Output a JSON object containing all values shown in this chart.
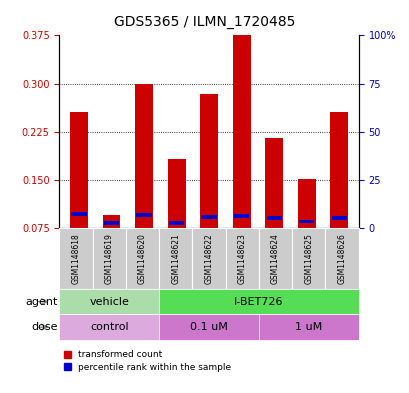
{
  "title": "GDS5365 / ILMN_1720485",
  "samples": [
    "GSM1148618",
    "GSM1148619",
    "GSM1148620",
    "GSM1148621",
    "GSM1148622",
    "GSM1148623",
    "GSM1148624",
    "GSM1148625",
    "GSM1148626"
  ],
  "red_values": [
    0.255,
    0.095,
    0.3,
    0.182,
    0.283,
    0.375,
    0.215,
    0.152,
    0.255
  ],
  "blue_values": [
    0.097,
    0.083,
    0.095,
    0.083,
    0.092,
    0.093,
    0.09,
    0.085,
    0.09
  ],
  "ylim_left": [
    0.075,
    0.375
  ],
  "ylim_right": [
    0,
    100
  ],
  "yticks_left": [
    0.075,
    0.15,
    0.225,
    0.3,
    0.375
  ],
  "yticks_right": [
    0,
    25,
    50,
    75,
    100
  ],
  "bar_color": "#CC0000",
  "blue_color": "#0000CC",
  "ylabel_left_color": "#CC0000",
  "ylabel_right_color": "#0000BB",
  "title_fontsize": 10,
  "tick_fontsize": 7,
  "label_fontsize": 8,
  "sample_box_color": "#CCCCCC",
  "agent_vehicle_color": "#AADDAA",
  "agent_ibet_color": "#55DD55",
  "dose_control_color": "#DDAADD",
  "dose_01_color": "#CC77CC",
  "dose_1_color": "#CC77CC"
}
